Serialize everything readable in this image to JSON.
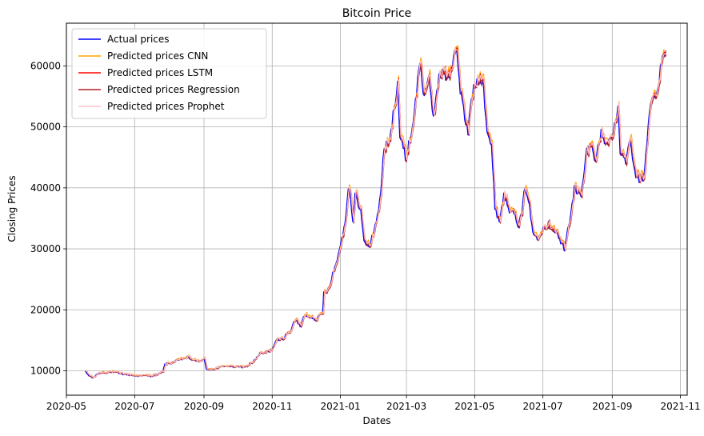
{
  "chart_data": {
    "type": "line",
    "title": "Bitcoin Price",
    "xlabel": "Dates",
    "ylabel": "Closing Prices",
    "grid": true,
    "legend_position": "top-left",
    "xlim": [
      "2020-05-01",
      "2021-11-07"
    ],
    "ylim": [
      6000,
      67000
    ],
    "x_ticks": [
      "2020-05",
      "2020-07",
      "2020-09",
      "2020-11",
      "2021-01",
      "2021-03",
      "2021-05",
      "2021-07",
      "2021-09",
      "2021-11"
    ],
    "y_ticks": [
      10000,
      20000,
      30000,
      40000,
      50000,
      60000
    ],
    "series": [
      {
        "name": "Actual prices",
        "color": "#0000ff"
      },
      {
        "name": "Predicted prices CNN",
        "color": "#ffa500"
      },
      {
        "name": "Predicted prices LSTM",
        "color": "#ff0000"
      },
      {
        "name": "Predicted prices Regression",
        "color": "#b22222"
      },
      {
        "name": "Predicted prices Prophet",
        "color": "#ffc0cb"
      }
    ],
    "actual_keypoints": [
      [
        "2020-05-18",
        9800
      ],
      [
        "2020-05-21",
        9200
      ],
      [
        "2020-05-25",
        8800
      ],
      [
        "2020-05-28",
        9500
      ],
      [
        "2020-06-01",
        9700
      ],
      [
        "2020-06-10",
        9800
      ],
      [
        "2020-06-20",
        9500
      ],
      [
        "2020-07-01",
        9200
      ],
      [
        "2020-07-15",
        9200
      ],
      [
        "2020-07-22",
        9400
      ],
      [
        "2020-07-26",
        9900
      ],
      [
        "2020-07-28",
        11000
      ],
      [
        "2020-08-02",
        11300
      ],
      [
        "2020-08-10",
        11800
      ],
      [
        "2020-08-17",
        12200
      ],
      [
        "2020-08-25",
        11500
      ],
      [
        "2020-09-01",
        11900
      ],
      [
        "2020-09-03",
        10300
      ],
      [
        "2020-09-10",
        10300
      ],
      [
        "2020-09-20",
        10800
      ],
      [
        "2020-10-01",
        10600
      ],
      [
        "2020-10-08",
        10700
      ],
      [
        "2020-10-15",
        11500
      ],
      [
        "2020-10-21",
        12800
      ],
      [
        "2020-10-26",
        13000
      ],
      [
        "2020-11-01",
        13600
      ],
      [
        "2020-11-05",
        15000
      ],
      [
        "2020-11-10",
        15300
      ],
      [
        "2020-11-17",
        16500
      ],
      [
        "2020-11-22",
        18500
      ],
      [
        "2020-11-26",
        17200
      ],
      [
        "2020-11-30",
        19200
      ],
      [
        "2020-12-10",
        18500
      ],
      [
        "2020-12-16",
        19400
      ],
      [
        "2020-12-17",
        22800
      ],
      [
        "2020-12-21",
        23500
      ],
      [
        "2020-12-26",
        26500
      ],
      [
        "2020-12-30",
        29000
      ],
      [
        "2021-01-02",
        32000
      ],
      [
        "2021-01-05",
        34000
      ],
      [
        "2021-01-08",
        40500
      ],
      [
        "2021-01-10",
        38500
      ],
      [
        "2021-01-12",
        34000
      ],
      [
        "2021-01-14",
        39000
      ],
      [
        "2021-01-19",
        36500
      ],
      [
        "2021-01-22",
        31000
      ],
      [
        "2021-01-27",
        30500
      ],
      [
        "2021-01-31",
        33000
      ],
      [
        "2021-02-05",
        37500
      ],
      [
        "2021-02-09",
        46500
      ],
      [
        "2021-02-14",
        47500
      ],
      [
        "2021-02-17",
        52000
      ],
      [
        "2021-02-21",
        57500
      ],
      [
        "2021-02-23",
        48500
      ],
      [
        "2021-02-28",
        45000
      ],
      [
        "2021-03-05",
        48500
      ],
      [
        "2021-03-09",
        54000
      ],
      [
        "2021-03-13",
        61000
      ],
      [
        "2021-03-16",
        55500
      ],
      [
        "2021-03-21",
        57500
      ],
      [
        "2021-03-25",
        51500
      ],
      [
        "2021-03-29",
        57500
      ],
      [
        "2021-04-02",
        59000
      ],
      [
        "2021-04-06",
        58000
      ],
      [
        "2021-04-10",
        59500
      ],
      [
        "2021-04-14",
        63500
      ],
      [
        "2021-04-18",
        56000
      ],
      [
        "2021-04-22",
        51500
      ],
      [
        "2021-04-25",
        49000
      ],
      [
        "2021-04-28",
        55000
      ],
      [
        "2021-05-03",
        57500
      ],
      [
        "2021-05-08",
        58500
      ],
      [
        "2021-05-12",
        49500
      ],
      [
        "2021-05-16",
        46500
      ],
      [
        "2021-05-19",
        37000
      ],
      [
        "2021-05-23",
        34500
      ],
      [
        "2021-05-27",
        39000
      ],
      [
        "2021-06-01",
        36500
      ],
      [
        "2021-06-04",
        37000
      ],
      [
        "2021-06-08",
        33500
      ],
      [
        "2021-06-12",
        35500
      ],
      [
        "2021-06-15",
        40500
      ],
      [
        "2021-06-18",
        38000
      ],
      [
        "2021-06-22",
        32500
      ],
      [
        "2021-06-26",
        32000
      ],
      [
        "2021-07-01",
        33500
      ],
      [
        "2021-07-06",
        34000
      ],
      [
        "2021-07-12",
        33000
      ],
      [
        "2021-07-16",
        31500
      ],
      [
        "2021-07-20",
        29800
      ],
      [
        "2021-07-25",
        35000
      ],
      [
        "2021-07-29",
        40000
      ],
      [
        "2021-08-04",
        38500
      ],
      [
        "2021-08-09",
        46000
      ],
      [
        "2021-08-14",
        47000
      ],
      [
        "2021-08-17",
        44500
      ],
      [
        "2021-08-22",
        49000
      ],
      [
        "2021-08-27",
        47000
      ],
      [
        "2021-09-02",
        49500
      ],
      [
        "2021-09-06",
        52500
      ],
      [
        "2021-09-08",
        46000
      ],
      [
        "2021-09-13",
        44500
      ],
      [
        "2021-09-17",
        47500
      ],
      [
        "2021-09-21",
        42500
      ],
      [
        "2021-09-24",
        41500
      ],
      [
        "2021-09-29",
        41500
      ],
      [
        "2021-10-02",
        48000
      ],
      [
        "2021-10-06",
        55000
      ],
      [
        "2021-10-10",
        54500
      ],
      [
        "2021-10-13",
        57500
      ],
      [
        "2021-10-15",
        61500
      ],
      [
        "2021-10-19",
        62500
      ]
    ]
  }
}
